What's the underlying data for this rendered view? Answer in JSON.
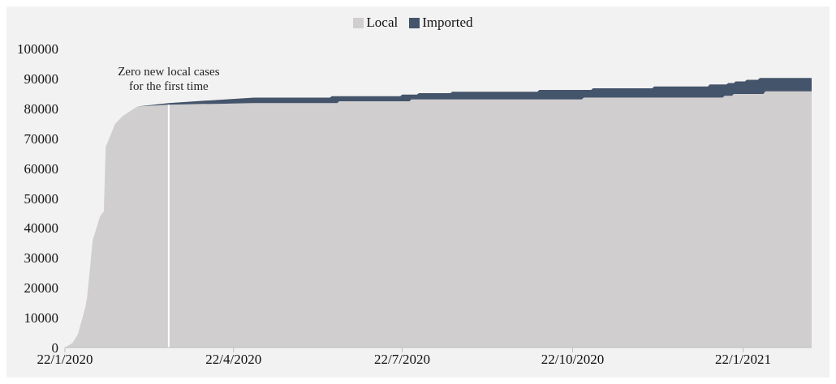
{
  "chart_data": {
    "type": "area",
    "stacked": true,
    "legend": "top",
    "grid": false,
    "x": [
      "2020-01-22",
      "2020-01-26",
      "2020-01-29",
      "2020-02-02",
      "2020-02-03",
      "2020-02-06",
      "2020-02-10",
      "2020-02-12",
      "2020-02-13",
      "2020-02-18",
      "2020-02-22",
      "2020-03-01",
      "2020-03-18",
      "2020-05-03",
      "2020-06-13",
      "2020-06-14",
      "2020-06-17",
      "2020-06-18",
      "2020-07-21",
      "2020-07-22",
      "2020-07-26",
      "2020-07-27",
      "2020-07-30",
      "2020-07-31",
      "2020-08-17",
      "2020-08-18",
      "2020-10-03",
      "2020-10-04",
      "2020-10-27",
      "2020-10-28",
      "2020-11-01",
      "2020-11-02",
      "2020-12-04",
      "2020-12-05",
      "2021-01-03",
      "2021-01-04",
      "2021-01-11",
      "2021-01-12",
      "2021-01-13",
      "2021-01-14",
      "2021-01-16",
      "2021-01-17",
      "2021-01-18",
      "2021-01-23",
      "2021-01-24",
      "2021-01-30",
      "2021-01-31",
      "2021-02-02",
      "2021-02-03",
      "2021-02-28"
    ],
    "series": [
      {
        "name": "Local",
        "color": "#d0cece",
        "values": [
          0,
          1500,
          4500,
          13400,
          17000,
          36000,
          44000,
          45500,
          67000,
          74700,
          77400,
          80600,
          81200,
          81800,
          81800,
          81800,
          81800,
          82400,
          82400,
          82400,
          82400,
          83000,
          83000,
          83000,
          83000,
          83000,
          83000,
          83000,
          83000,
          83600,
          83600,
          83600,
          83600,
          83600,
          83600,
          83600,
          83600,
          84200,
          84200,
          84200,
          84200,
          84800,
          84800,
          84800,
          84800,
          84800,
          84800,
          84800,
          85700,
          85700
        ]
      },
      {
        "name": "Imported",
        "color": "#44546a",
        "values": [
          0,
          0,
          0,
          0,
          0,
          0,
          0,
          0,
          0,
          0,
          0,
          0,
          600,
          1800,
          1800,
          2300,
          2300,
          1700,
          1700,
          2200,
          2200,
          1600,
          1600,
          2100,
          2100,
          2600,
          2600,
          3200,
          3200,
          2600,
          2600,
          3100,
          3100,
          3700,
          3700,
          4400,
          4400,
          3800,
          3800,
          4300,
          4300,
          3700,
          4200,
          4200,
          4800,
          4800,
          5400,
          5400,
          4500,
          4500
        ]
      }
    ],
    "xlim": [
      "2020-01-22",
      "2021-02-28"
    ],
    "xticks": [
      {
        "value": "2020-01-22",
        "label": "22/1/2020"
      },
      {
        "value": "2020-04-22",
        "label": "22/4/2020"
      },
      {
        "value": "2020-07-22",
        "label": "22/7/2020"
      },
      {
        "value": "2020-10-22",
        "label": "22/10/2020"
      },
      {
        "value": "2021-01-22",
        "label": "22/1/2021"
      }
    ],
    "ylim": [
      0,
      100000
    ],
    "yticks": [
      0,
      10000,
      20000,
      30000,
      40000,
      50000,
      60000,
      70000,
      80000,
      90000,
      100000
    ],
    "ref_lines": [
      {
        "axis": "x",
        "value": "2020-03-18",
        "label": "Zero new local cases\nfor the first time",
        "color": "#ffffff"
      }
    ]
  }
}
